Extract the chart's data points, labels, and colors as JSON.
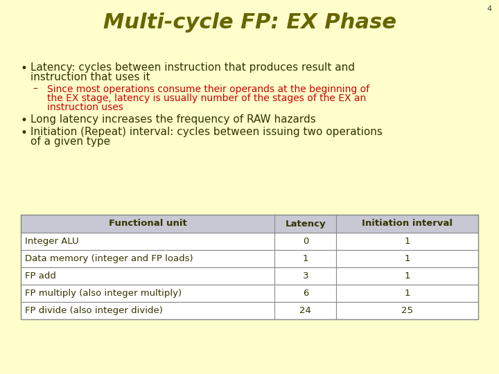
{
  "title": "Multi-cycle FP: EX Phase",
  "slide_number": "4",
  "background_color": "#FFFFCC",
  "title_color": "#666600",
  "bullet_color": "#333300",
  "sub_bullet_color": "#CC0000",
  "slide_number_color": "#444444",
  "bullets": [
    {
      "text": "Latency: cycles between instruction that produces result and\ninstruction that uses it",
      "level": 0
    },
    {
      "text": "Since most operations consume their operands at the beginning of\nthe EX stage, latency is usually number of the stages of the EX an\ninstruction uses",
      "level": 1
    },
    {
      "text": "Long latency increases the frequency of RAW hazards",
      "level": 0
    },
    {
      "text": "Initiation (Repeat) interval: cycles between issuing two operations\nof a given type",
      "level": 0
    }
  ],
  "table_header": [
    "Functional unit",
    "Latency",
    "Initiation interval"
  ],
  "table_rows": [
    [
      "Integer ALU",
      "0",
      "1"
    ],
    [
      "Data memory (integer and FP loads)",
      "1",
      "1"
    ],
    [
      "FP add",
      "3",
      "1"
    ],
    [
      "FP multiply (also integer multiply)",
      "6",
      "1"
    ],
    [
      "FP divide (also integer divide)",
      "24",
      "25"
    ]
  ],
  "table_header_bg": "#C8C8D4",
  "table_row_bg": "#FFFFFF",
  "table_border_color": "#888888",
  "table_text_color": "#333300",
  "font_size_title": 22,
  "font_size_bullet": 11,
  "font_size_sub_bullet": 10,
  "font_size_table": 9.5,
  "font_size_slide_number": 8
}
